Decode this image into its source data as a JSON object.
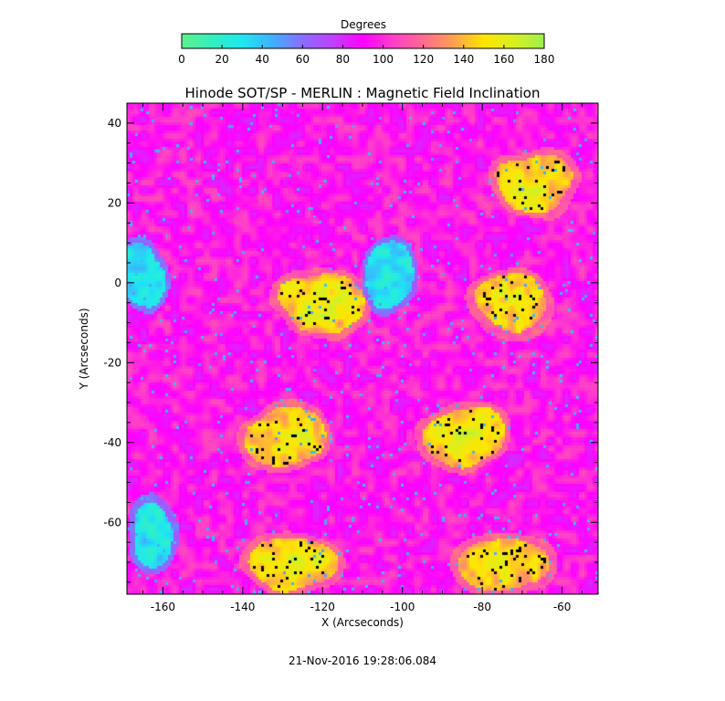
{
  "colorbar": {
    "title": "Degrees",
    "ticks": [
      0,
      20,
      40,
      60,
      80,
      100,
      120,
      140,
      160,
      180
    ],
    "range": [
      0,
      180
    ],
    "colormap_stops": [
      {
        "value": 0,
        "color": "#5ef08a"
      },
      {
        "value": 15,
        "color": "#33f0c0"
      },
      {
        "value": 30,
        "color": "#1ee8f0"
      },
      {
        "value": 45,
        "color": "#3fb0ff"
      },
      {
        "value": 60,
        "color": "#8a6cff"
      },
      {
        "value": 75,
        "color": "#c040ff"
      },
      {
        "value": 90,
        "color": "#ff00ff"
      },
      {
        "value": 105,
        "color": "#ff40c8"
      },
      {
        "value": 120,
        "color": "#ff6a90"
      },
      {
        "value": 135,
        "color": "#ffa050"
      },
      {
        "value": 150,
        "color": "#ffe600"
      },
      {
        "value": 165,
        "color": "#d8f020"
      },
      {
        "value": 180,
        "color": "#9cf050"
      }
    ]
  },
  "chart_data": {
    "type": "heatmap",
    "title": "Hinode SOT/SP - MERLIN : Magnetic Field Inclination",
    "xlabel": "X (Arcseconds)",
    "ylabel": "Y (Arcseconds)",
    "xlim": [
      -169,
      -51
    ],
    "ylim": [
      -78,
      45
    ],
    "xticks": [
      -160,
      -140,
      -120,
      -100,
      -80,
      -60
    ],
    "yticks": [
      -60,
      -40,
      -20,
      0,
      20,
      40
    ],
    "value_unit": "Degrees",
    "value_range": [
      0,
      180
    ],
    "scan_seam_x": -110,
    "features": [
      {
        "kind": "strong-inclined",
        "x": -121,
        "y": -5,
        "value": 150
      },
      {
        "kind": "strong-inclined",
        "x": -129,
        "y": -38,
        "value": 150
      },
      {
        "kind": "strong-inclined",
        "x": -72,
        "y": -5,
        "value": 150
      },
      {
        "kind": "strong-inclined",
        "x": -85,
        "y": -38,
        "value": 150
      },
      {
        "kind": "strong-inclined",
        "x": -66,
        "y": 25,
        "value": 150
      },
      {
        "kind": "strong-inclined",
        "x": -128,
        "y": -70,
        "value": 155
      },
      {
        "kind": "strong-inclined",
        "x": -75,
        "y": -70,
        "value": 155
      },
      {
        "kind": "low-inclination",
        "x": -165,
        "y": 2,
        "value": 30
      },
      {
        "kind": "low-inclination",
        "x": -163,
        "y": -62,
        "value": 30
      },
      {
        "kind": "low-inclination",
        "x": -103,
        "y": 2,
        "value": 35
      }
    ],
    "background_value": 95
  },
  "footer": {
    "timestamp": "21-Nov-2016 19:28:06.084"
  }
}
